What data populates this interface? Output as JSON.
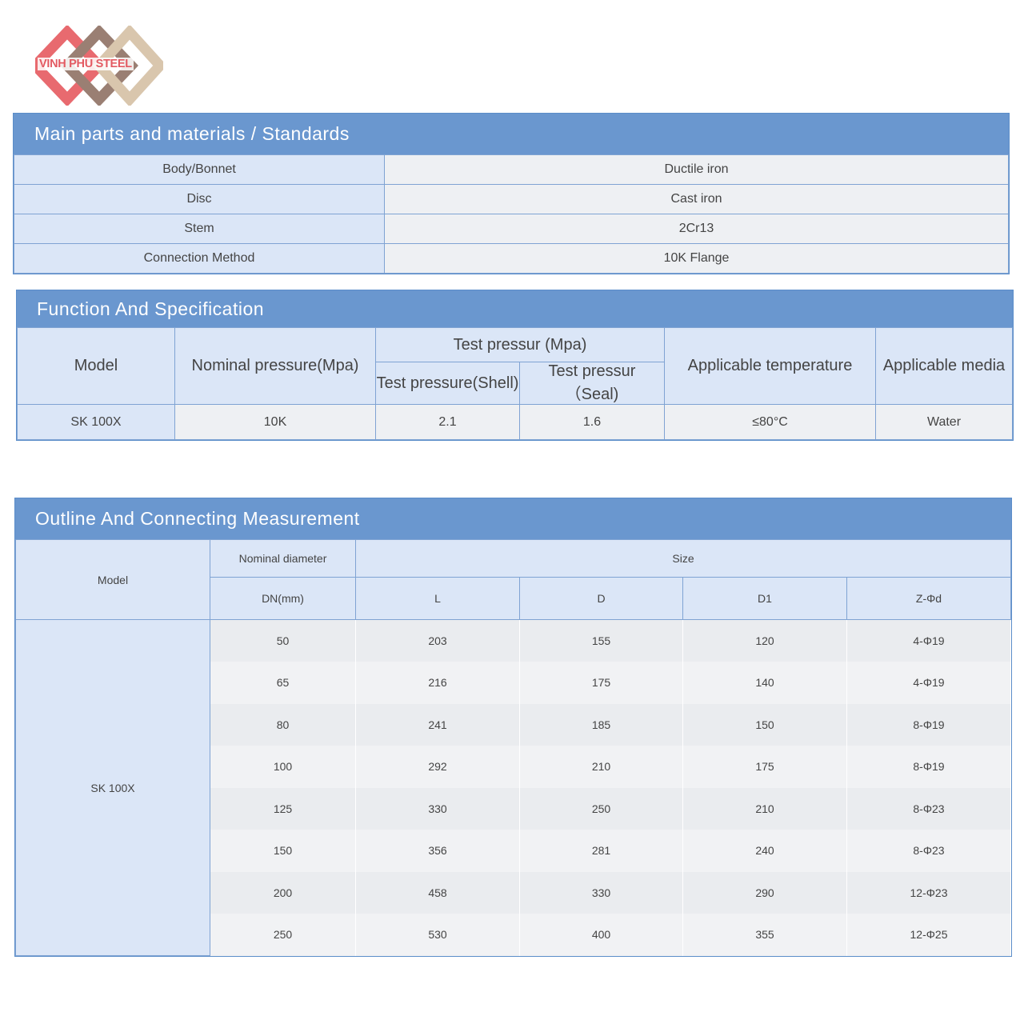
{
  "logo": {
    "text": "VINH PHU STEEL",
    "colors": [
      "#e86a6f",
      "#9a7f73",
      "#d9c6ad"
    ]
  },
  "materials": {
    "title": "Main parts and materials / Standards",
    "rows": [
      {
        "label": "Body/Bonnet",
        "value": "Ductile iron"
      },
      {
        "label": "Disc",
        "value": "Cast iron"
      },
      {
        "label": "Stem",
        "value": "2Cr13"
      },
      {
        "label": "Connection Method",
        "value": "10K Flange"
      }
    ]
  },
  "function": {
    "title": "Function And Specification",
    "headers": {
      "model": "Model",
      "nominal_pressure": "Nominal pressure(Mpa)",
      "test_pressure": "Test pressur (Mpa)",
      "shell": "Test pressure(Shell)",
      "seal": "Test pressur （Seal)",
      "temperature": "Applicable temperature",
      "media": "Applicable media"
    },
    "row": {
      "model": "SK 100X",
      "nominal_pressure": "10K",
      "shell": "2.1",
      "seal": "1.6",
      "temperature": "≤80°C",
      "media": "Water"
    }
  },
  "outline": {
    "title": "Outline And Connecting Measurement",
    "headers": {
      "model": "Model",
      "nominal_diameter": "Nominal diameter",
      "size": "Size",
      "dn": "DN(mm)",
      "l": "L",
      "d": "D",
      "d1": "D1",
      "z": "Z-Φd"
    },
    "model": "SK 100X",
    "rows": [
      [
        "50",
        "203",
        "155",
        "120",
        "4-Φ19"
      ],
      [
        "65",
        "216",
        "175",
        "140",
        "4-Φ19"
      ],
      [
        "80",
        "241",
        "185",
        "150",
        "8-Φ19"
      ],
      [
        "100",
        "292",
        "210",
        "175",
        "8-Φ19"
      ],
      [
        "125",
        "330",
        "250",
        "210",
        "8-Φ23"
      ],
      [
        "150",
        "356",
        "281",
        "240",
        "8-Φ23"
      ],
      [
        "200",
        "458",
        "330",
        "290",
        "12-Φ23"
      ],
      [
        "250",
        "530",
        "400",
        "355",
        "12-Φ25"
      ]
    ]
  }
}
